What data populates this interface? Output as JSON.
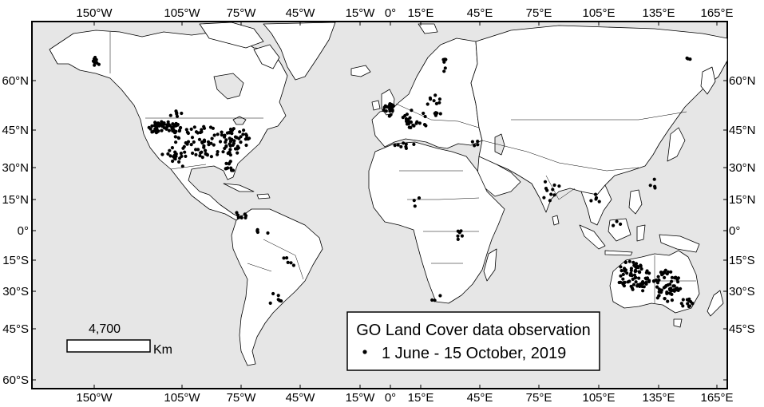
{
  "colors": {
    "ocean": "#e6e6e6",
    "land": "#ffffff",
    "border": "#000000",
    "point": "#000000"
  },
  "top_lon_labels": [
    "150°W",
    "105°W",
    "75°W",
    "45°W",
    "15°W",
    "0°",
    "15°E",
    "45°E",
    "75°E",
    "105°E",
    "135°E",
    "165°E"
  ],
  "bottom_lon_labels": [
    "150°W",
    "105°W",
    "75°W",
    "45°W",
    "15°W",
    "0°",
    "15°E",
    "45°E",
    "75°E",
    "105°E",
    "135°E",
    "165°E"
  ],
  "left_lat_labels": [
    "60°N",
    "45°N",
    "30°N",
    "15°N",
    "0°",
    "15°S",
    "30°S",
    "45°S",
    "60°S"
  ],
  "right_lat_labels": [
    "60°N",
    "45°N",
    "30°N",
    "15°N",
    "0°",
    "15°S",
    "30°S",
    "45°S"
  ],
  "scale_bar": {
    "value": "4,700",
    "unit": "Km"
  },
  "legend": {
    "title": "GO Land Cover data observation",
    "entry": "1 June - 15 October, 2019",
    "symbol": "point-icon"
  }
}
